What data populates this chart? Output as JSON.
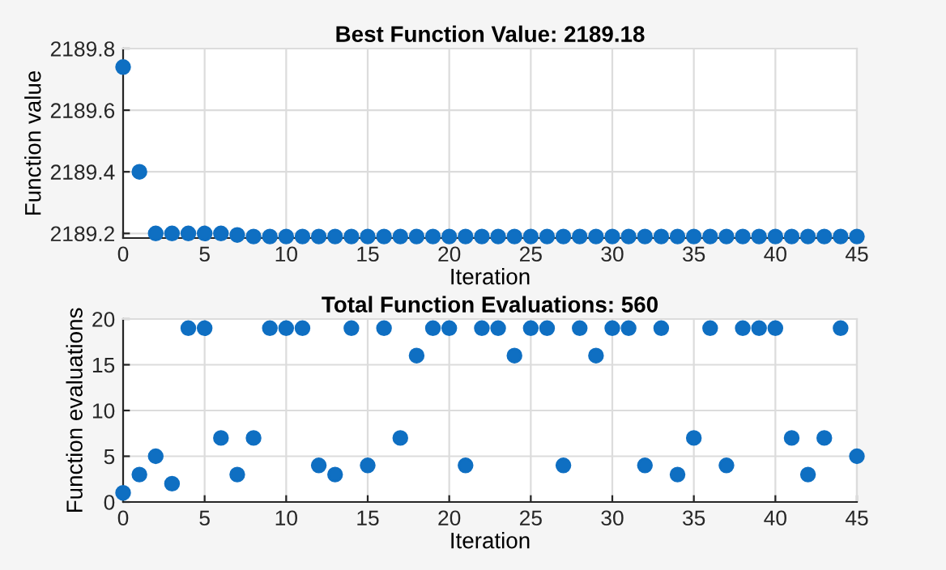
{
  "chart_data": [
    {
      "type": "scatter",
      "title": "Best Function Value: 2189.18",
      "xlabel": "Iteration",
      "ylabel": "Function value",
      "x": [
        0,
        1,
        2,
        3,
        4,
        5,
        6,
        7,
        8,
        9,
        10,
        11,
        12,
        13,
        14,
        15,
        16,
        17,
        18,
        19,
        20,
        21,
        22,
        23,
        24,
        25,
        26,
        27,
        28,
        29,
        30,
        31,
        32,
        33,
        34,
        35,
        36,
        37,
        38,
        39,
        40,
        41,
        42,
        43,
        44,
        45
      ],
      "series": [
        {
          "color": "#0f6fc2",
          "values": [
            2189.74,
            2189.4,
            2189.2,
            2189.2,
            2189.2,
            2189.2,
            2189.2,
            2189.195,
            2189.19,
            2189.19,
            2189.19,
            2189.19,
            2189.19,
            2189.19,
            2189.19,
            2189.19,
            2189.19,
            2189.19,
            2189.19,
            2189.19,
            2189.19,
            2189.19,
            2189.19,
            2189.19,
            2189.19,
            2189.19,
            2189.19,
            2189.19,
            2189.19,
            2189.19,
            2189.19,
            2189.19,
            2189.19,
            2189.19,
            2189.19,
            2189.19,
            2189.19,
            2189.19,
            2189.19,
            2189.19,
            2189.19,
            2189.19,
            2189.19,
            2189.19,
            2189.19,
            2189.19
          ]
        }
      ],
      "xlim": [
        0,
        45
      ],
      "xticks": [
        0,
        5,
        10,
        15,
        20,
        25,
        30,
        35,
        40,
        45
      ],
      "ylim": [
        2189.185,
        2189.8
      ],
      "yticks": [
        2189.2,
        2189.4,
        2189.6,
        2189.8
      ],
      "grid": true,
      "marker": "circle",
      "legend": false
    },
    {
      "type": "scatter",
      "title": "Total Function Evaluations: 560",
      "xlabel": "Iteration",
      "ylabel": "Function evaluations",
      "x": [
        0,
        1,
        2,
        3,
        4,
        5,
        6,
        7,
        8,
        9,
        10,
        11,
        12,
        13,
        14,
        15,
        16,
        17,
        18,
        19,
        20,
        21,
        22,
        23,
        24,
        25,
        26,
        27,
        28,
        29,
        30,
        31,
        32,
        33,
        34,
        35,
        36,
        37,
        38,
        39,
        40,
        41,
        42,
        43,
        44,
        45
      ],
      "series": [
        {
          "color": "#0f6fc2",
          "values": [
            1,
            3,
            5,
            2,
            19,
            19,
            7,
            3,
            7,
            19,
            19,
            19,
            4,
            3,
            19,
            4,
            19,
            7,
            16,
            19,
            19,
            4,
            19,
            19,
            16,
            19,
            19,
            4,
            19,
            16,
            19,
            19,
            4,
            19,
            3,
            7,
            19,
            4,
            19,
            19,
            19,
            7,
            3,
            7,
            19,
            5
          ]
        }
      ],
      "xlim": [
        0,
        45
      ],
      "xticks": [
        0,
        5,
        10,
        15,
        20,
        25,
        30,
        35,
        40,
        45
      ],
      "ylim": [
        0,
        20
      ],
      "yticks": [
        0,
        5,
        10,
        15,
        20
      ],
      "grid": true,
      "marker": "circle",
      "legend": false
    }
  ]
}
